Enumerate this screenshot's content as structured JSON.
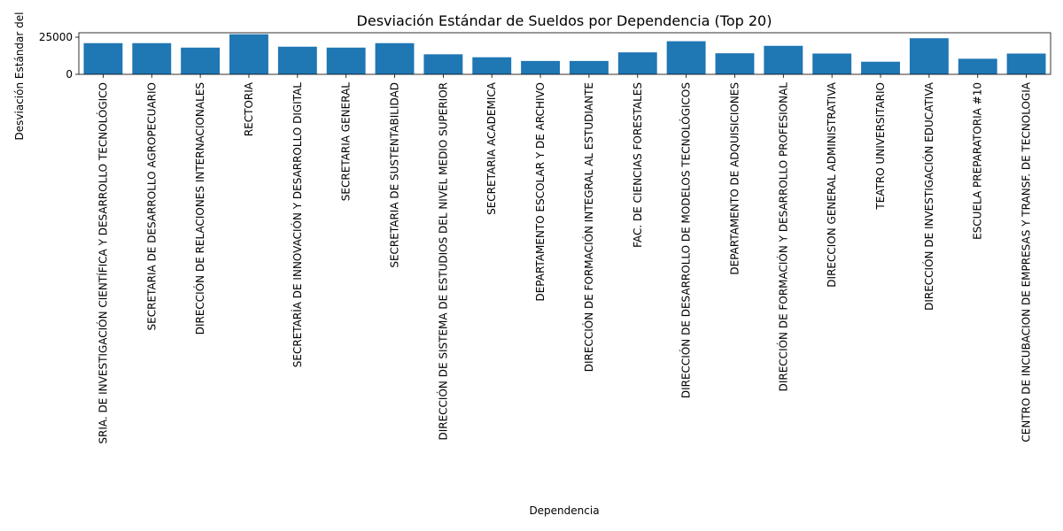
{
  "chart_data": {
    "type": "bar",
    "title": "Desviación Estándar de Sueldos por Dependencia (Top 20)",
    "xlabel": "Dependencia",
    "ylabel": "Desviación Estándar del",
    "ylim": [
      0,
      28000
    ],
    "yticks": [
      0,
      25000
    ],
    "bar_color": "#1f77b4",
    "grid": false,
    "categories": [
      "SRIA. DE INVESTIGACIÓN CIENTÍFICA Y DESARROLLO TECNOLÓGICO",
      "SECRETARIA DE DESARROLLO AGROPECUARIO",
      "DIRECCIÓN DE RELACIONES INTERNACIONALES",
      "RECTORIA",
      "SECRETARÍA DE INNOVACIÓN Y DESARROLLO DIGITAL",
      "SECRETARIA GENERAL",
      "SECRETARIA DE SUSTENTABILIDAD",
      "DIRECCIÓN DE SISTEMA DE ESTUDIOS DEL NIVEL MEDIO SUPERIOR",
      "SECRETARIA ACADEMICA",
      "DEPARTAMENTO ESCOLAR Y DE ARCHIVO",
      "DIRECCIÓN DE FORMACIÓN INTEGRAL AL ESTUDIANTE",
      "FAC. DE CIENCIAS FORESTALES",
      "DIRECCIÓN DE DESARROLLO DE MODELOS TECNOLÓGICOS",
      "DEPARTAMENTO DE ADQUISICIONES",
      "DIRECCIÓN DE FORMACIÓN Y DESARROLLO PROFESIONAL",
      "DIRECCION GENERAL ADMINISTRATIVA",
      "TEATRO UNIVERSITARIO",
      "DIRECCIÓN DE INVESTIGACIÓN EDUCATIVA",
      "ESCUELA PREPARATORIA #10",
      "CENTRO DE INCUBACION DE EMPRESAS Y TRANSF. DE TECNOLOGIA"
    ],
    "values": [
      21000,
      21000,
      18000,
      27000,
      18600,
      18000,
      21000,
      13500,
      11500,
      9000,
      9000,
      14800,
      22300,
      14200,
      19200,
      14000,
      8500,
      24300,
      10500,
      14000
    ]
  }
}
